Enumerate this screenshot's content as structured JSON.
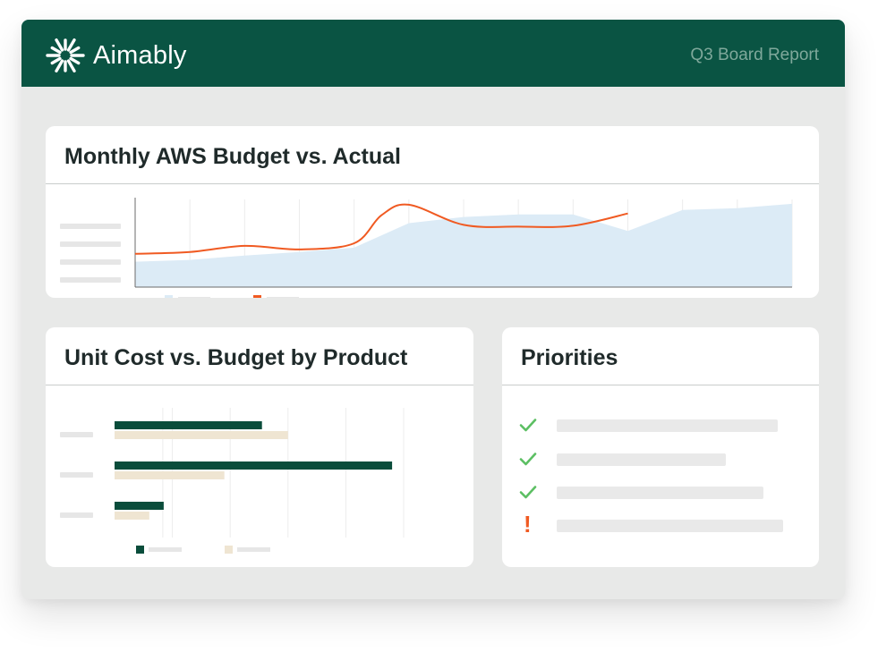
{
  "app": {
    "brand": "Aimably",
    "report_title": "Q3 Board Report"
  },
  "colors": {
    "header_bg": "#0a5443",
    "budget_area": "#dcebf6",
    "actual_line": "#f05a22",
    "unit_cost_bar": "#0a4d3b",
    "budget_bar": "#efe5d2",
    "check": "#5cbf63",
    "alert": "#f05a22"
  },
  "monthly_chart": {
    "title": "Monthly AWS Budget vs. Actual"
  },
  "unit_cost_chart": {
    "title": "Unit Cost vs. Budget by Product"
  },
  "priorities": {
    "title": "Priorities",
    "items": [
      {
        "status": "done",
        "icon": "check-icon"
      },
      {
        "status": "done",
        "icon": "check-icon"
      },
      {
        "status": "done",
        "icon": "check-icon"
      },
      {
        "status": "alert",
        "icon": "exclamation-icon",
        "mark": "!"
      }
    ]
  },
  "chart_data": [
    {
      "type": "area",
      "title": "Monthly AWS Budget vs. Actual",
      "x": [
        0,
        1,
        2,
        3,
        4,
        5,
        6,
        7,
        8,
        9,
        10,
        11,
        12
      ],
      "ylim": [
        0,
        100
      ],
      "grid": true,
      "legend": "bottom-left",
      "series": [
        {
          "kind": "area",
          "x": [
            0,
            1,
            2,
            3,
            4,
            5,
            6,
            7,
            8,
            9,
            10,
            11,
            12
          ],
          "values": [
            29,
            31,
            36,
            40,
            45,
            73,
            80,
            83,
            83,
            64,
            88,
            90,
            95
          ]
        },
        {
          "kind": "line",
          "x": [
            0,
            1,
            2,
            3,
            4,
            4.5,
            5,
            6,
            7,
            8,
            9
          ],
          "values": [
            38,
            40,
            47,
            43,
            50,
            82,
            94,
            71,
            69,
            70,
            84
          ]
        }
      ]
    },
    {
      "type": "bar",
      "orientation": "horizontal",
      "title": "Unit Cost vs. Budget by Product",
      "categories": [
        "",
        "",
        ""
      ],
      "xlim": [
        0,
        100
      ],
      "grid": true,
      "legend": "bottom-left",
      "series": [
        {
          "values": [
            51,
            96,
            17
          ]
        },
        {
          "values": [
            60,
            38,
            12
          ]
        }
      ]
    }
  ]
}
